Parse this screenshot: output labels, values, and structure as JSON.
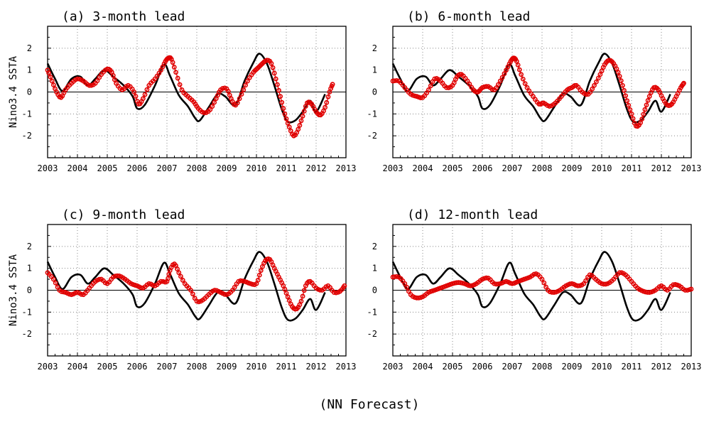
{
  "footer_caption": "(NN Forecast)",
  "colors": {
    "observed": "#000000",
    "forecast": "#e00000",
    "grid": "#888888"
  },
  "chart_data": [
    {
      "type": "line",
      "title": "(a) 3-month lead",
      "ylabel": "Nino3.4 SSTA",
      "xlim": [
        2003,
        2013
      ],
      "ylim": [
        -3,
        3
      ],
      "xticks": [
        "2003",
        "2004",
        "2005",
        "2006",
        "2007",
        "2008",
        "2009",
        "2010",
        "2011",
        "2012",
        "2013"
      ],
      "yticks": [
        "-2",
        "-1",
        "0",
        "1",
        "2"
      ],
      "grid": true,
      "series": [
        {
          "style": "line",
          "x": [
            2003.0,
            2003.25,
            2003.5,
            2003.8,
            2004.1,
            2004.35,
            2004.6,
            2004.9,
            2005.2,
            2005.55,
            2005.85,
            2006.0,
            2006.25,
            2006.6,
            2006.9,
            2007.1,
            2007.4,
            2007.7,
            2007.95,
            2008.1,
            2008.4,
            2008.7,
            2008.95,
            2009.3,
            2009.6,
            2009.9,
            2010.1,
            2010.35,
            2010.6,
            2010.85,
            2011.05,
            2011.3,
            2011.55,
            2011.8,
            2012.0,
            2012.3
          ],
          "y": [
            1.3,
            0.6,
            0.05,
            0.6,
            0.7,
            0.3,
            0.6,
            1.0,
            0.7,
            0.3,
            -0.2,
            -0.75,
            -0.6,
            0.3,
            1.25,
            0.75,
            -0.15,
            -0.65,
            -1.2,
            -1.3,
            -0.7,
            -0.1,
            -0.2,
            -0.6,
            0.5,
            1.35,
            1.75,
            1.3,
            0.3,
            -0.8,
            -1.35,
            -1.3,
            -0.9,
            -0.4,
            -0.9,
            -0.1
          ]
        },
        {
          "style": "markers",
          "x": [
            2003.0,
            2003.15,
            2003.3,
            2003.45,
            2003.6,
            2003.8,
            2004.0,
            2004.2,
            2004.4,
            2004.6,
            2004.8,
            2005.0,
            2005.15,
            2005.3,
            2005.5,
            2005.7,
            2005.9,
            2006.05,
            2006.2,
            2006.4,
            2006.6,
            2006.8,
            2006.95,
            2007.05,
            2007.15,
            2007.3,
            2007.5,
            2007.7,
            2007.9,
            2008.05,
            2008.25,
            2008.45,
            2008.65,
            2008.8,
            2009.0,
            2009.15,
            2009.3,
            2009.5,
            2009.7,
            2009.9,
            2010.05,
            2010.2,
            2010.35,
            2010.5,
            2010.65,
            2010.8,
            2010.95,
            2011.1,
            2011.25,
            2011.4,
            2011.55,
            2011.7,
            2011.85,
            2012.0,
            2012.15,
            2012.3,
            2012.45,
            2012.55
          ],
          "y": [
            1.0,
            0.5,
            0.0,
            -0.25,
            0.1,
            0.4,
            0.6,
            0.5,
            0.3,
            0.4,
            0.8,
            1.05,
            0.9,
            0.4,
            0.1,
            0.3,
            0.0,
            -0.55,
            -0.3,
            0.3,
            0.6,
            1.0,
            1.4,
            1.55,
            1.5,
            0.9,
            0.1,
            -0.2,
            -0.45,
            -0.75,
            -0.95,
            -0.8,
            -0.3,
            0.1,
            0.15,
            -0.3,
            -0.6,
            -0.1,
            0.5,
            0.9,
            1.1,
            1.3,
            1.45,
            1.3,
            0.6,
            -0.2,
            -1.0,
            -1.6,
            -2.0,
            -1.7,
            -1.1,
            -0.5,
            -0.55,
            -0.9,
            -1.05,
            -0.7,
            0.0,
            0.35
          ]
        }
      ]
    },
    {
      "type": "line",
      "title": "(b) 6-month lead",
      "ylabel": "",
      "xlim": [
        2003,
        2013
      ],
      "ylim": [
        -3,
        3
      ],
      "xticks": [
        "2003",
        "2004",
        "2005",
        "2006",
        "2007",
        "2008",
        "2009",
        "2010",
        "2011",
        "2012",
        "2013"
      ],
      "yticks": [
        "-2",
        "-1",
        "0",
        "1",
        "2"
      ],
      "grid": true,
      "series": [
        {
          "style": "line",
          "x": [
            2003.0,
            2003.25,
            2003.5,
            2003.8,
            2004.1,
            2004.35,
            2004.6,
            2004.9,
            2005.2,
            2005.55,
            2005.85,
            2006.0,
            2006.25,
            2006.6,
            2006.9,
            2007.1,
            2007.4,
            2007.7,
            2007.95,
            2008.1,
            2008.4,
            2008.7,
            2008.95,
            2009.3,
            2009.6,
            2009.9,
            2010.1,
            2010.35,
            2010.6,
            2010.85,
            2011.05,
            2011.3,
            2011.55,
            2011.8,
            2012.0,
            2012.3
          ],
          "y": [
            1.3,
            0.6,
            0.05,
            0.6,
            0.7,
            0.3,
            0.6,
            1.0,
            0.7,
            0.3,
            -0.2,
            -0.75,
            -0.6,
            0.3,
            1.25,
            0.75,
            -0.15,
            -0.65,
            -1.2,
            -1.3,
            -0.7,
            -0.1,
            -0.2,
            -0.6,
            0.5,
            1.35,
            1.75,
            1.3,
            0.3,
            -0.8,
            -1.35,
            -1.3,
            -0.9,
            -0.4,
            -0.9,
            -0.1
          ]
        },
        {
          "style": "markers",
          "x": [
            2003.0,
            2003.2,
            2003.4,
            2003.6,
            2003.8,
            2004.0,
            2004.2,
            2004.4,
            2004.6,
            2004.8,
            2005.0,
            2005.15,
            2005.3,
            2005.5,
            2005.7,
            2005.85,
            2006.0,
            2006.2,
            2006.4,
            2006.6,
            2006.8,
            2006.95,
            2007.05,
            2007.15,
            2007.3,
            2007.5,
            2007.7,
            2007.9,
            2008.05,
            2008.25,
            2008.45,
            2008.65,
            2008.85,
            2009.0,
            2009.15,
            2009.35,
            2009.55,
            2009.75,
            2009.95,
            2010.1,
            2010.25,
            2010.4,
            2010.55,
            2010.7,
            2010.85,
            2011.0,
            2011.15,
            2011.3,
            2011.45,
            2011.6,
            2011.75,
            2011.9,
            2012.05,
            2012.2,
            2012.35,
            2012.5,
            2012.65,
            2012.75
          ],
          "y": [
            0.5,
            0.5,
            0.2,
            -0.1,
            -0.2,
            -0.25,
            0.1,
            0.6,
            0.5,
            0.2,
            0.3,
            0.7,
            0.8,
            0.5,
            0.1,
            0.0,
            0.2,
            0.25,
            0.1,
            0.5,
            1.0,
            1.4,
            1.55,
            1.4,
            0.8,
            0.2,
            -0.2,
            -0.55,
            -0.5,
            -0.65,
            -0.5,
            -0.2,
            0.1,
            0.2,
            0.3,
            0.0,
            -0.1,
            0.3,
            0.8,
            1.25,
            1.45,
            1.3,
            0.9,
            0.3,
            -0.4,
            -1.0,
            -1.55,
            -1.4,
            -0.8,
            -0.2,
            0.2,
            0.1,
            -0.3,
            -0.6,
            -0.55,
            -0.2,
            0.2,
            0.4
          ]
        }
      ]
    },
    {
      "type": "line",
      "title": "(c) 9-month lead",
      "ylabel": "Nino3.4 SSTA",
      "xlim": [
        2003,
        2013
      ],
      "ylim": [
        -3,
        3
      ],
      "xticks": [
        "2003",
        "2004",
        "2005",
        "2006",
        "2007",
        "2008",
        "2009",
        "2010",
        "2011",
        "2012",
        "2013"
      ],
      "yticks": [
        "-2",
        "-1",
        "0",
        "1",
        "2"
      ],
      "grid": true,
      "series": [
        {
          "style": "line",
          "x": [
            2003.0,
            2003.25,
            2003.5,
            2003.8,
            2004.1,
            2004.35,
            2004.6,
            2004.9,
            2005.2,
            2005.55,
            2005.85,
            2006.0,
            2006.25,
            2006.6,
            2006.9,
            2007.1,
            2007.4,
            2007.7,
            2007.95,
            2008.1,
            2008.4,
            2008.7,
            2008.95,
            2009.3,
            2009.6,
            2009.9,
            2010.1,
            2010.35,
            2010.6,
            2010.85,
            2011.05,
            2011.3,
            2011.55,
            2011.8,
            2012.0,
            2012.3
          ],
          "y": [
            1.3,
            0.6,
            0.05,
            0.6,
            0.7,
            0.3,
            0.6,
            1.0,
            0.7,
            0.3,
            -0.2,
            -0.75,
            -0.6,
            0.3,
            1.25,
            0.75,
            -0.15,
            -0.65,
            -1.2,
            -1.3,
            -0.7,
            -0.1,
            -0.2,
            -0.6,
            0.5,
            1.35,
            1.75,
            1.3,
            0.3,
            -0.8,
            -1.35,
            -1.3,
            -0.9,
            -0.4,
            -0.9,
            -0.1
          ]
        },
        {
          "style": "markers",
          "x": [
            2003.0,
            2003.2,
            2003.4,
            2003.6,
            2003.8,
            2004.0,
            2004.2,
            2004.4,
            2004.6,
            2004.8,
            2005.0,
            2005.2,
            2005.4,
            2005.6,
            2005.8,
            2006.0,
            2006.2,
            2006.4,
            2006.6,
            2006.8,
            2007.0,
            2007.1,
            2007.25,
            2007.4,
            2007.6,
            2007.8,
            2008.0,
            2008.2,
            2008.4,
            2008.6,
            2008.8,
            2009.0,
            2009.2,
            2009.4,
            2009.6,
            2009.8,
            2010.0,
            2010.15,
            2010.3,
            2010.45,
            2010.6,
            2010.75,
            2010.9,
            2011.05,
            2011.2,
            2011.35,
            2011.5,
            2011.65,
            2011.8,
            2012.0,
            2012.2,
            2012.4,
            2012.6,
            2012.8,
            2012.95
          ],
          "y": [
            0.8,
            0.5,
            0.0,
            -0.1,
            -0.2,
            -0.1,
            -0.2,
            0.1,
            0.4,
            0.5,
            0.3,
            0.6,
            0.65,
            0.5,
            0.3,
            0.2,
            0.1,
            0.3,
            0.2,
            0.4,
            0.4,
            0.9,
            1.2,
            0.8,
            0.3,
            0.0,
            -0.5,
            -0.45,
            -0.2,
            0.0,
            -0.1,
            -0.2,
            0.0,
            0.4,
            0.4,
            0.3,
            0.3,
            0.9,
            1.35,
            1.4,
            1.0,
            0.6,
            0.2,
            -0.3,
            -0.75,
            -0.85,
            -0.5,
            0.2,
            0.4,
            0.1,
            0.0,
            0.2,
            -0.1,
            -0.05,
            0.2
          ]
        }
      ]
    },
    {
      "type": "line",
      "title": "(d) 12-month lead",
      "ylabel": "",
      "xlim": [
        2003,
        2013
      ],
      "ylim": [
        -3,
        3
      ],
      "xticks": [
        "2003",
        "2004",
        "2005",
        "2006",
        "2007",
        "2008",
        "2009",
        "2010",
        "2011",
        "2012",
        "2013"
      ],
      "yticks": [
        "-2",
        "-1",
        "0",
        "1",
        "2"
      ],
      "grid": true,
      "series": [
        {
          "style": "line",
          "x": [
            2003.0,
            2003.25,
            2003.5,
            2003.8,
            2004.1,
            2004.35,
            2004.6,
            2004.9,
            2005.2,
            2005.55,
            2005.85,
            2006.0,
            2006.25,
            2006.6,
            2006.9,
            2007.1,
            2007.4,
            2007.7,
            2007.95,
            2008.1,
            2008.4,
            2008.7,
            2008.95,
            2009.3,
            2009.6,
            2009.9,
            2010.1,
            2010.35,
            2010.6,
            2010.85,
            2011.05,
            2011.3,
            2011.55,
            2011.8,
            2012.0,
            2012.3
          ],
          "y": [
            1.3,
            0.6,
            0.05,
            0.6,
            0.7,
            0.3,
            0.6,
            1.0,
            0.7,
            0.3,
            -0.2,
            -0.75,
            -0.6,
            0.3,
            1.25,
            0.75,
            -0.15,
            -0.65,
            -1.2,
            -1.3,
            -0.7,
            -0.1,
            -0.2,
            -0.6,
            0.5,
            1.35,
            1.75,
            1.3,
            0.3,
            -0.8,
            -1.35,
            -1.3,
            -0.9,
            -0.4,
            -0.9,
            -0.1
          ]
        },
        {
          "style": "markers",
          "x": [
            2003.0,
            2003.2,
            2003.4,
            2003.6,
            2003.8,
            2004.0,
            2004.2,
            2004.4,
            2004.6,
            2004.8,
            2005.0,
            2005.2,
            2005.4,
            2005.6,
            2005.8,
            2006.0,
            2006.2,
            2006.4,
            2006.6,
            2006.8,
            2007.0,
            2007.2,
            2007.4,
            2007.6,
            2007.8,
            2008.0,
            2008.2,
            2008.4,
            2008.6,
            2008.8,
            2009.0,
            2009.2,
            2009.4,
            2009.6,
            2009.8,
            2010.0,
            2010.2,
            2010.4,
            2010.6,
            2010.8,
            2011.0,
            2011.2,
            2011.4,
            2011.6,
            2011.8,
            2012.0,
            2012.2,
            2012.4,
            2012.6,
            2012.8,
            2013.0
          ],
          "y": [
            0.6,
            0.6,
            0.3,
            -0.2,
            -0.35,
            -0.3,
            -0.1,
            0.0,
            0.1,
            0.2,
            0.3,
            0.35,
            0.3,
            0.2,
            0.3,
            0.5,
            0.55,
            0.3,
            0.3,
            0.4,
            0.3,
            0.4,
            0.5,
            0.6,
            0.75,
            0.5,
            0.0,
            -0.1,
            0.0,
            0.2,
            0.3,
            0.2,
            0.3,
            0.7,
            0.5,
            0.3,
            0.3,
            0.5,
            0.8,
            0.7,
            0.4,
            0.1,
            -0.05,
            -0.1,
            0.0,
            0.2,
            0.0,
            0.25,
            0.2,
            0.0,
            0.05
          ]
        }
      ]
    }
  ]
}
